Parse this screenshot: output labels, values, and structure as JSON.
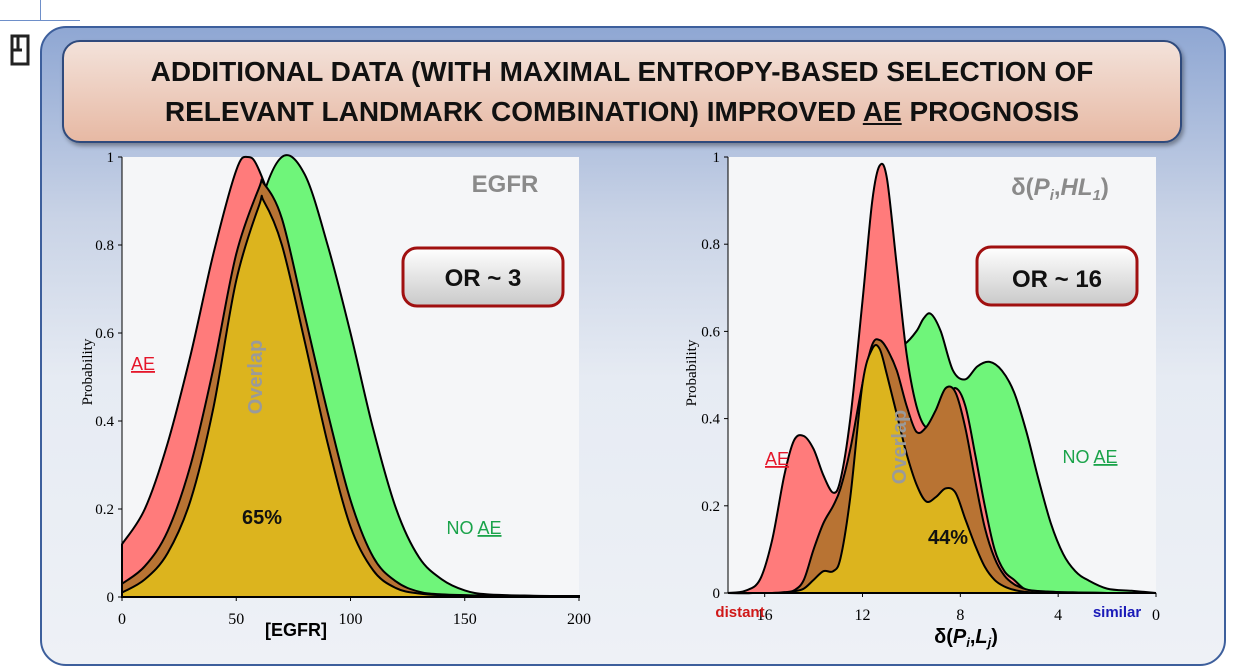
{
  "slide": {
    "title_line1": "ADDITIONAL DATA (WITH MAXIMAL ENTROPY-BASED SELECTION OF",
    "title_line2_prefix": "RELEVANT LANDMARK COMBINATION) IMPROVED ",
    "title_line2_underlined": "AE",
    "title_line2_suffix": " PROGNOSIS"
  },
  "colors": {
    "ae": "#ff7b7b",
    "no_ae": "#6ff57a",
    "overlap_outer": "#b87333",
    "overlap_inner": "#dcb41e",
    "ae_label": "#e5162a",
    "no_ae_label": "#1aa34a",
    "overlap_label": "#9a9a9a",
    "distant": "#d01818",
    "similar": "#1a1ab8"
  },
  "chart_data": [
    {
      "type": "area",
      "title": "EGFR",
      "xlabel": "[EGFR]",
      "ylabel": "Probability",
      "xlim": [
        0,
        200
      ],
      "ylim": [
        0,
        1
      ],
      "x_ticks": [
        "0",
        "50",
        "100",
        "150",
        "200"
      ],
      "y_ticks": [
        "0",
        "0.2",
        "0.4",
        "0.6",
        "0.8",
        "1"
      ],
      "annotation_box": "OR ~ 3",
      "overlap_label": "Overlap",
      "overlap_percent": "65%",
      "ae_label": "AE",
      "no_label_prefix": "NO ",
      "no_label_ae": "AE",
      "series": [
        {
          "key": "ae",
          "x": [
            0,
            10,
            20,
            30,
            40,
            50,
            55,
            60,
            70,
            80,
            90,
            100,
            110,
            120,
            130,
            140,
            160,
            180,
            200
          ],
          "values": [
            0.12,
            0.2,
            0.35,
            0.55,
            0.78,
            0.97,
            1.0,
            0.97,
            0.82,
            0.6,
            0.38,
            0.2,
            0.08,
            0.03,
            0.01,
            0.005,
            0.003,
            0.002,
            0.002
          ]
        },
        {
          "key": "no_ae",
          "x": [
            0,
            10,
            20,
            30,
            40,
            50,
            60,
            70,
            80,
            90,
            100,
            110,
            120,
            130,
            140,
            150,
            160,
            180,
            200
          ],
          "values": [
            0.01,
            0.04,
            0.1,
            0.22,
            0.4,
            0.62,
            0.88,
            1.0,
            0.96,
            0.8,
            0.6,
            0.38,
            0.2,
            0.09,
            0.04,
            0.015,
            0.006,
            0.003,
            0.002
          ]
        },
        {
          "key": "overlap_outer",
          "x": [
            0,
            10,
            20,
            30,
            40,
            50,
            60,
            62,
            70,
            80,
            90,
            100,
            110,
            120,
            130,
            140,
            160,
            180,
            200
          ],
          "values": [
            0.03,
            0.07,
            0.15,
            0.3,
            0.52,
            0.78,
            0.93,
            0.94,
            0.86,
            0.64,
            0.42,
            0.22,
            0.09,
            0.035,
            0.012,
            0.006,
            0.003,
            0.002,
            0.002
          ]
        },
        {
          "key": "overlap_inner",
          "x": [
            0,
            10,
            20,
            30,
            40,
            50,
            60,
            62,
            70,
            80,
            90,
            100,
            110,
            120,
            130,
            140,
            160,
            180,
            200
          ],
          "values": [
            0.01,
            0.04,
            0.1,
            0.22,
            0.43,
            0.72,
            0.89,
            0.9,
            0.8,
            0.58,
            0.35,
            0.16,
            0.06,
            0.02,
            0.008,
            0.004,
            0.002,
            0.002,
            0.002
          ]
        }
      ]
    },
    {
      "type": "area",
      "title_prefix": "δ(",
      "title_p": "P",
      "title_i": "i",
      "title_sep": ",",
      "title_hl": "HL",
      "title_1": "1",
      "title_suffix": ")",
      "xlabel_prefix": "δ(",
      "xlabel_p": "P",
      "xlabel_i": "i",
      "xlabel_sep": ",",
      "xlabel_l": "L",
      "xlabel_j": "j",
      "xlabel_suffix": ")",
      "ylabel": "Probability",
      "xlim": [
        17.5,
        0
      ],
      "ylim": [
        0,
        1
      ],
      "x_ticks": [
        "16",
        "12",
        "8",
        "4",
        "0"
      ],
      "y_ticks": [
        "0",
        "0.2",
        "0.4",
        "0.6",
        "0.8",
        "1"
      ],
      "x_left_label": "distant",
      "x_right_label": "similar",
      "annotation_box": "OR ~ 16",
      "overlap_label": "Overlap",
      "overlap_percent": "44%",
      "ae_label": "AE",
      "no_label_prefix": "NO ",
      "no_label_ae": "AE",
      "series": [
        {
          "key": "no_ae",
          "x": [
            17.5,
            16.5,
            15.5,
            14.5,
            13.5,
            12.5,
            11.5,
            10.8,
            10.3,
            9.8,
            9.5,
            9.2,
            8.8,
            8.3,
            7.8,
            7.3,
            6.8,
            6.3,
            5.8,
            5.3,
            4.8,
            4.3,
            3.8,
            3.3,
            2.8,
            2.0,
            1.0,
            0
          ],
          "values": [
            0.0,
            0.0,
            0.01,
            0.05,
            0.12,
            0.25,
            0.45,
            0.56,
            0.57,
            0.6,
            0.63,
            0.64,
            0.6,
            0.51,
            0.49,
            0.52,
            0.53,
            0.51,
            0.46,
            0.37,
            0.26,
            0.16,
            0.09,
            0.05,
            0.03,
            0.01,
            0.005,
            0.0
          ]
        },
        {
          "key": "ae",
          "x": [
            17.5,
            16.8,
            16.2,
            15.7,
            15.2,
            14.8,
            14.4,
            14.0,
            13.6,
            13.2,
            12.9,
            12.5,
            12.0,
            11.6,
            11.3,
            11.0,
            10.6,
            10.2,
            9.8,
            9.4,
            9.0,
            8.6,
            8.2,
            7.8,
            7.4,
            7.0,
            6.6,
            6.2,
            5.8,
            5.4,
            5.0,
            4.0,
            3.0,
            2.0,
            1.0,
            0
          ],
          "values": [
            0.0,
            0.005,
            0.03,
            0.12,
            0.27,
            0.35,
            0.36,
            0.33,
            0.27,
            0.23,
            0.26,
            0.4,
            0.67,
            0.9,
            0.98,
            0.95,
            0.75,
            0.55,
            0.43,
            0.38,
            0.4,
            0.44,
            0.47,
            0.43,
            0.32,
            0.2,
            0.1,
            0.05,
            0.03,
            0.01,
            0.005,
            0.002,
            0.001,
            0.0,
            0.0,
            0.0
          ]
        },
        {
          "key": "overlap_outer",
          "x": [
            17.5,
            16.8,
            16.2,
            15.7,
            15.2,
            14.8,
            14.4,
            14.0,
            13.6,
            13.2,
            12.9,
            12.5,
            12.0,
            11.6,
            11.3,
            11.0,
            10.6,
            10.2,
            9.8,
            9.4,
            9.0,
            8.6,
            8.2,
            7.8,
            7.4,
            7.0,
            6.6,
            6.2,
            5.8,
            5.4,
            5.0,
            4.0,
            3.0,
            2.0,
            1.0,
            0
          ],
          "values": [
            0.0,
            0.0,
            0.0,
            0.0,
            0.002,
            0.006,
            0.03,
            0.1,
            0.16,
            0.2,
            0.24,
            0.33,
            0.48,
            0.57,
            0.58,
            0.56,
            0.51,
            0.43,
            0.37,
            0.38,
            0.42,
            0.47,
            0.46,
            0.38,
            0.26,
            0.15,
            0.08,
            0.04,
            0.02,
            0.01,
            0.005,
            0.002,
            0.001,
            0.0,
            0.0,
            0.0
          ]
        },
        {
          "key": "overlap_inner",
          "x": [
            17.5,
            16.8,
            16.2,
            15.7,
            15.2,
            14.8,
            14.4,
            14.0,
            13.6,
            13.2,
            12.9,
            12.5,
            12.0,
            11.6,
            11.3,
            11.0,
            10.6,
            10.2,
            9.8,
            9.4,
            9.0,
            8.6,
            8.2,
            7.8,
            7.4,
            7.0,
            6.6,
            6.2,
            5.8,
            5.4,
            5.0,
            4.0,
            3.0,
            2.0,
            1.0,
            0
          ],
          "values": [
            0.0,
            0.0,
            0.0,
            0.0,
            0.001,
            0.004,
            0.01,
            0.03,
            0.05,
            0.05,
            0.08,
            0.22,
            0.48,
            0.56,
            0.56,
            0.5,
            0.41,
            0.32,
            0.25,
            0.21,
            0.22,
            0.24,
            0.23,
            0.17,
            0.11,
            0.06,
            0.03,
            0.015,
            0.007,
            0.003,
            0.001,
            0.0,
            0.0,
            0.0,
            0.0,
            0.0
          ]
        }
      ]
    }
  ]
}
